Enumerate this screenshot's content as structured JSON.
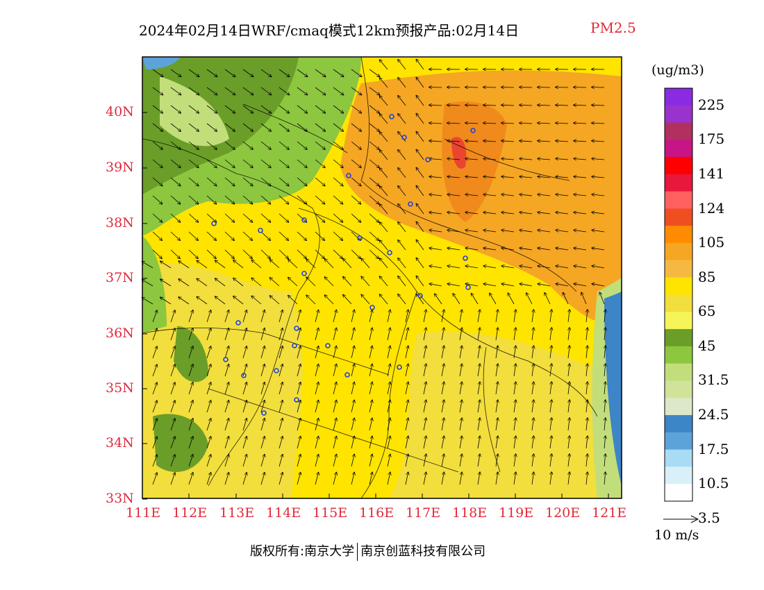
{
  "title": {
    "main": "2024年02月14日WRF/cmaq模式12km预报产品:02月14日",
    "species": "PM2.5"
  },
  "colorbar": {
    "unit": "(ug/m3)",
    "labels": [
      "225",
      "175",
      "141",
      "124",
      "105",
      "85",
      "65",
      "45",
      "31.5",
      "24.5",
      "17.5",
      "10.5",
      "3.5"
    ],
    "colors": [
      "#8a2be2",
      "#9a32cd",
      "#b03060",
      "#c71585",
      "#ff0000",
      "#e8173c",
      "#ff6060",
      "#f04e20",
      "#ff8c00",
      "#f5a623",
      "#f5b942",
      "#ffe400",
      "#f2de3c",
      "#f5f55a",
      "#6a9e28",
      "#8dc63f",
      "#c2de7a",
      "#cfe39a",
      "#dde8c8",
      "#3d85c6",
      "#5ba3d9",
      "#a8dcf5",
      "#d9f0f8",
      "#ffffff"
    ]
  },
  "axes": {
    "lat_labels": [
      "40N",
      "39N",
      "38N",
      "37N",
      "36N",
      "35N",
      "34N",
      "33N"
    ],
    "lon_labels": [
      "111E",
      "112E",
      "113E",
      "114E",
      "115E",
      "116E",
      "117E",
      "118E",
      "119E",
      "120E",
      "121E"
    ]
  },
  "vector_legend": {
    "label": "10 m/s"
  },
  "footer": {
    "left": "版权所有:南京大学",
    "right": "南京创蓝科技有限公司"
  }
}
